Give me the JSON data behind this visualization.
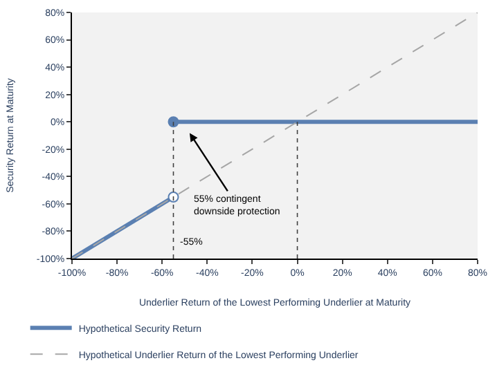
{
  "chart_data": {
    "type": "line",
    "xlabel": "Underlier Return of the Lowest Performing Underlier at Maturity",
    "ylabel": "Security Return at Maturity",
    "xlim": [
      -100,
      80
    ],
    "ylim": [
      -100,
      80
    ],
    "xticks": [
      {
        "value": -100,
        "label": "-100%"
      },
      {
        "value": -80,
        "label": "-80%"
      },
      {
        "value": -60,
        "label": "-60%"
      },
      {
        "value": -40,
        "label": "-40%"
      },
      {
        "value": -20,
        "label": "-20%"
      },
      {
        "value": 0,
        "label": "0%"
      },
      {
        "value": 20,
        "label": "20%"
      },
      {
        "value": 40,
        "label": "40%"
      },
      {
        "value": 60,
        "label": "60%"
      },
      {
        "value": 80,
        "label": "80%"
      }
    ],
    "yticks": [
      {
        "value": -100,
        "label": "-100%"
      },
      {
        "value": -80,
        "label": "-80%"
      },
      {
        "value": -60,
        "label": "-60%"
      },
      {
        "value": -40,
        "label": "-40%"
      },
      {
        "value": -20,
        "label": "-20%"
      },
      {
        "value": 0,
        "label": "0%"
      },
      {
        "value": 20,
        "label": "20%"
      },
      {
        "value": 40,
        "label": "40%"
      },
      {
        "value": 60,
        "label": "60%"
      },
      {
        "value": 80,
        "label": "80%"
      }
    ],
    "series": [
      {
        "name": "Hypothetical Security Return",
        "color": "#5b80b2",
        "x": [
          -100,
          -55
        ],
        "values": [
          -100,
          -55
        ],
        "line_style": "solid"
      },
      {
        "color": "#5b80b2",
        "x": [
          -55,
          80
        ],
        "values": [
          0,
          0
        ],
        "line_style": "solid"
      },
      {
        "name": "Hypothetical Underlier Return of the Lowest Performing Underlier",
        "color": "#a6a6a6",
        "x": [
          -100,
          80
        ],
        "values": [
          -100,
          80
        ],
        "line_style": "dashed"
      },
      {
        "type": "scatter",
        "color": "#ffffff",
        "x": [
          -55
        ],
        "values": [
          -55
        ],
        "marker": "circle"
      },
      {
        "type": "scatter",
        "color": "#5b80b2",
        "x": [
          -55
        ],
        "values": [
          0
        ],
        "marker": "circle"
      }
    ],
    "ref_lines": [
      {
        "axis": "x",
        "value": -55,
        "color": "#404040",
        "line_style": "dotted"
      },
      {
        "axis": "x",
        "value": 0,
        "color": "#404040",
        "line_style": "dotted"
      }
    ],
    "annotations": [
      "55% contingent downside protection",
      {
        "text": "-55%",
        "x": -55,
        "y": -88
      }
    ],
    "grid": false,
    "legend": "bottom"
  }
}
